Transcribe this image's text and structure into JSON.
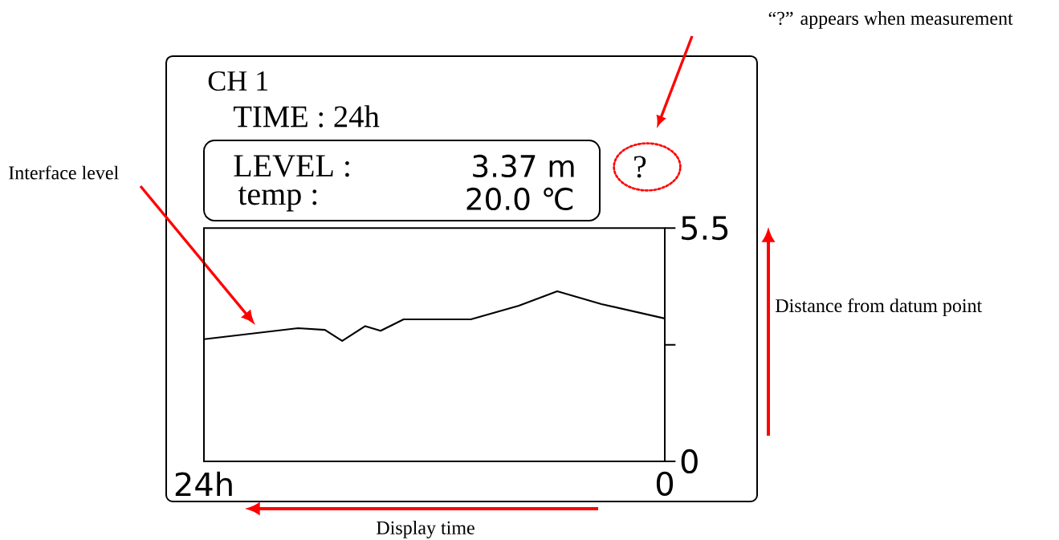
{
  "chart_data": {
    "type": "line",
    "title": "CH 1",
    "subtitle": "TIME : 24h",
    "x": [
      24,
      19.1,
      17.7,
      16.8,
      15.6,
      14.8,
      13.6,
      10.1,
      7.6,
      5.6,
      3.3,
      0
    ],
    "series": [
      {
        "color": "#000000",
        "values": [
          2.88,
          3.14,
          3.1,
          2.84,
          3.19,
          3.08,
          3.35,
          3.35,
          3.67,
          4.01,
          3.71,
          3.37
        ]
      }
    ],
    "xlim": [
      24,
      0
    ],
    "xticks": [
      {
        "value": 24,
        "label": "24h"
      },
      {
        "value": 0,
        "label": "0"
      }
    ],
    "ylim": [
      0,
      5.5
    ],
    "yticks": [
      5.5,
      {
        "value": 2.75,
        "label": null
      },
      0
    ],
    "line_style": "solid",
    "annotations": [
      "Interface level",
      "“?” appears when measurement",
      "?",
      "LEVEL :",
      "3.37 m",
      "temp :",
      "20.0 ℃",
      "Distance from datum point",
      "Display time"
    ]
  }
}
